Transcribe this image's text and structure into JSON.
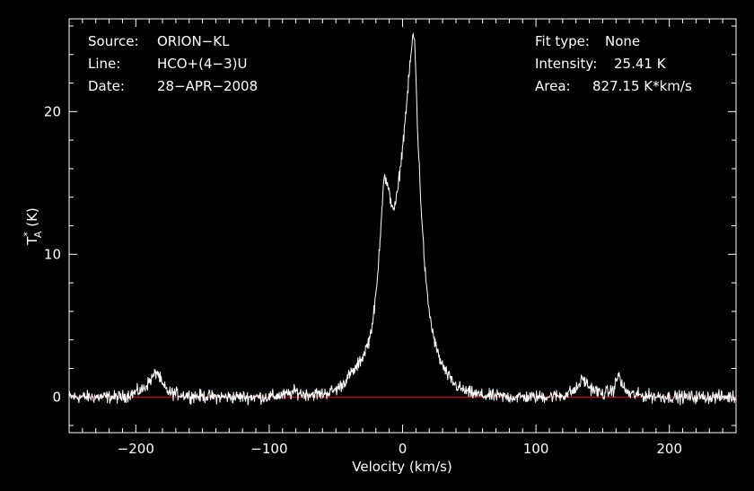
{
  "chart_data": {
    "type": "line",
    "xlabel": "Velocity (km/s)",
    "ylabel_main": "T",
    "ylabel_sup": "*",
    "ylabel_sub": "A",
    "ylabel_units": " (K)",
    "xlim": [
      -250,
      250
    ],
    "ylim": [
      -2.5,
      26.5
    ],
    "xticks": [
      -200,
      -100,
      0,
      100,
      200
    ],
    "xtick_labels": [
      "−200",
      "−100",
      "0",
      "100",
      "200"
    ],
    "yticks": [
      0,
      10,
      20
    ],
    "ytick_labels": [
      "0",
      "10",
      "20"
    ],
    "baseline": 0,
    "baseline_color": "#ff0000",
    "line_color": "#ffffff",
    "background": "#000000",
    "grid": false,
    "series": [
      {
        "x": [
          -250,
          -230,
          -210,
          -195,
          -188,
          -184,
          -180,
          -175,
          -160,
          -140,
          -120,
          -100,
          -85,
          -80,
          -75,
          -60,
          -50,
          -45,
          -40,
          -35,
          -30,
          -25,
          -22,
          -19,
          -16,
          -14,
          -12,
          -10,
          -8,
          -6,
          -4,
          -2,
          0,
          2,
          4,
          6,
          8,
          9,
          10,
          11,
          12,
          14,
          16,
          18,
          20,
          22,
          25,
          28,
          32,
          36,
          40,
          45,
          50,
          60,
          80,
          100,
          120,
          130,
          135,
          140,
          150,
          158,
          162,
          165,
          170,
          180,
          200,
          220,
          250
        ],
        "y": [
          0,
          0,
          0,
          0.5,
          1.3,
          1.8,
          0.8,
          0.3,
          0.1,
          0,
          0,
          0,
          0.2,
          0.4,
          0.2,
          0.2,
          0.5,
          0.9,
          1.5,
          2.0,
          2.8,
          4.0,
          5.5,
          8.0,
          12.5,
          15.5,
          15.0,
          14.2,
          13.5,
          13.2,
          14.2,
          15.8,
          17.5,
          19.5,
          21.5,
          23.8,
          25.4,
          25.0,
          22.5,
          19.5,
          17.0,
          13.2,
          10.0,
          7.5,
          6.0,
          4.8,
          3.5,
          2.6,
          1.8,
          1.2,
          0.8,
          0.5,
          0.3,
          0.1,
          0,
          0,
          0.1,
          0.5,
          1.3,
          0.7,
          0.2,
          0.5,
          1.6,
          0.7,
          0.2,
          0.1,
          0,
          0,
          0
        ]
      }
    ]
  },
  "info_left": [
    {
      "label": "Source:",
      "value": "ORION−KL"
    },
    {
      "label": "Line:",
      "value": "HCO+(4−3)U"
    },
    {
      "label": "Date:",
      "value": "28−APR−2008"
    }
  ],
  "info_right": [
    {
      "label": "Fit type:",
      "value": "None"
    },
    {
      "label": "Intensity:",
      "value": "25.41 K"
    },
    {
      "label": "Area:",
      "value": "827.15 K*km/s"
    }
  ]
}
